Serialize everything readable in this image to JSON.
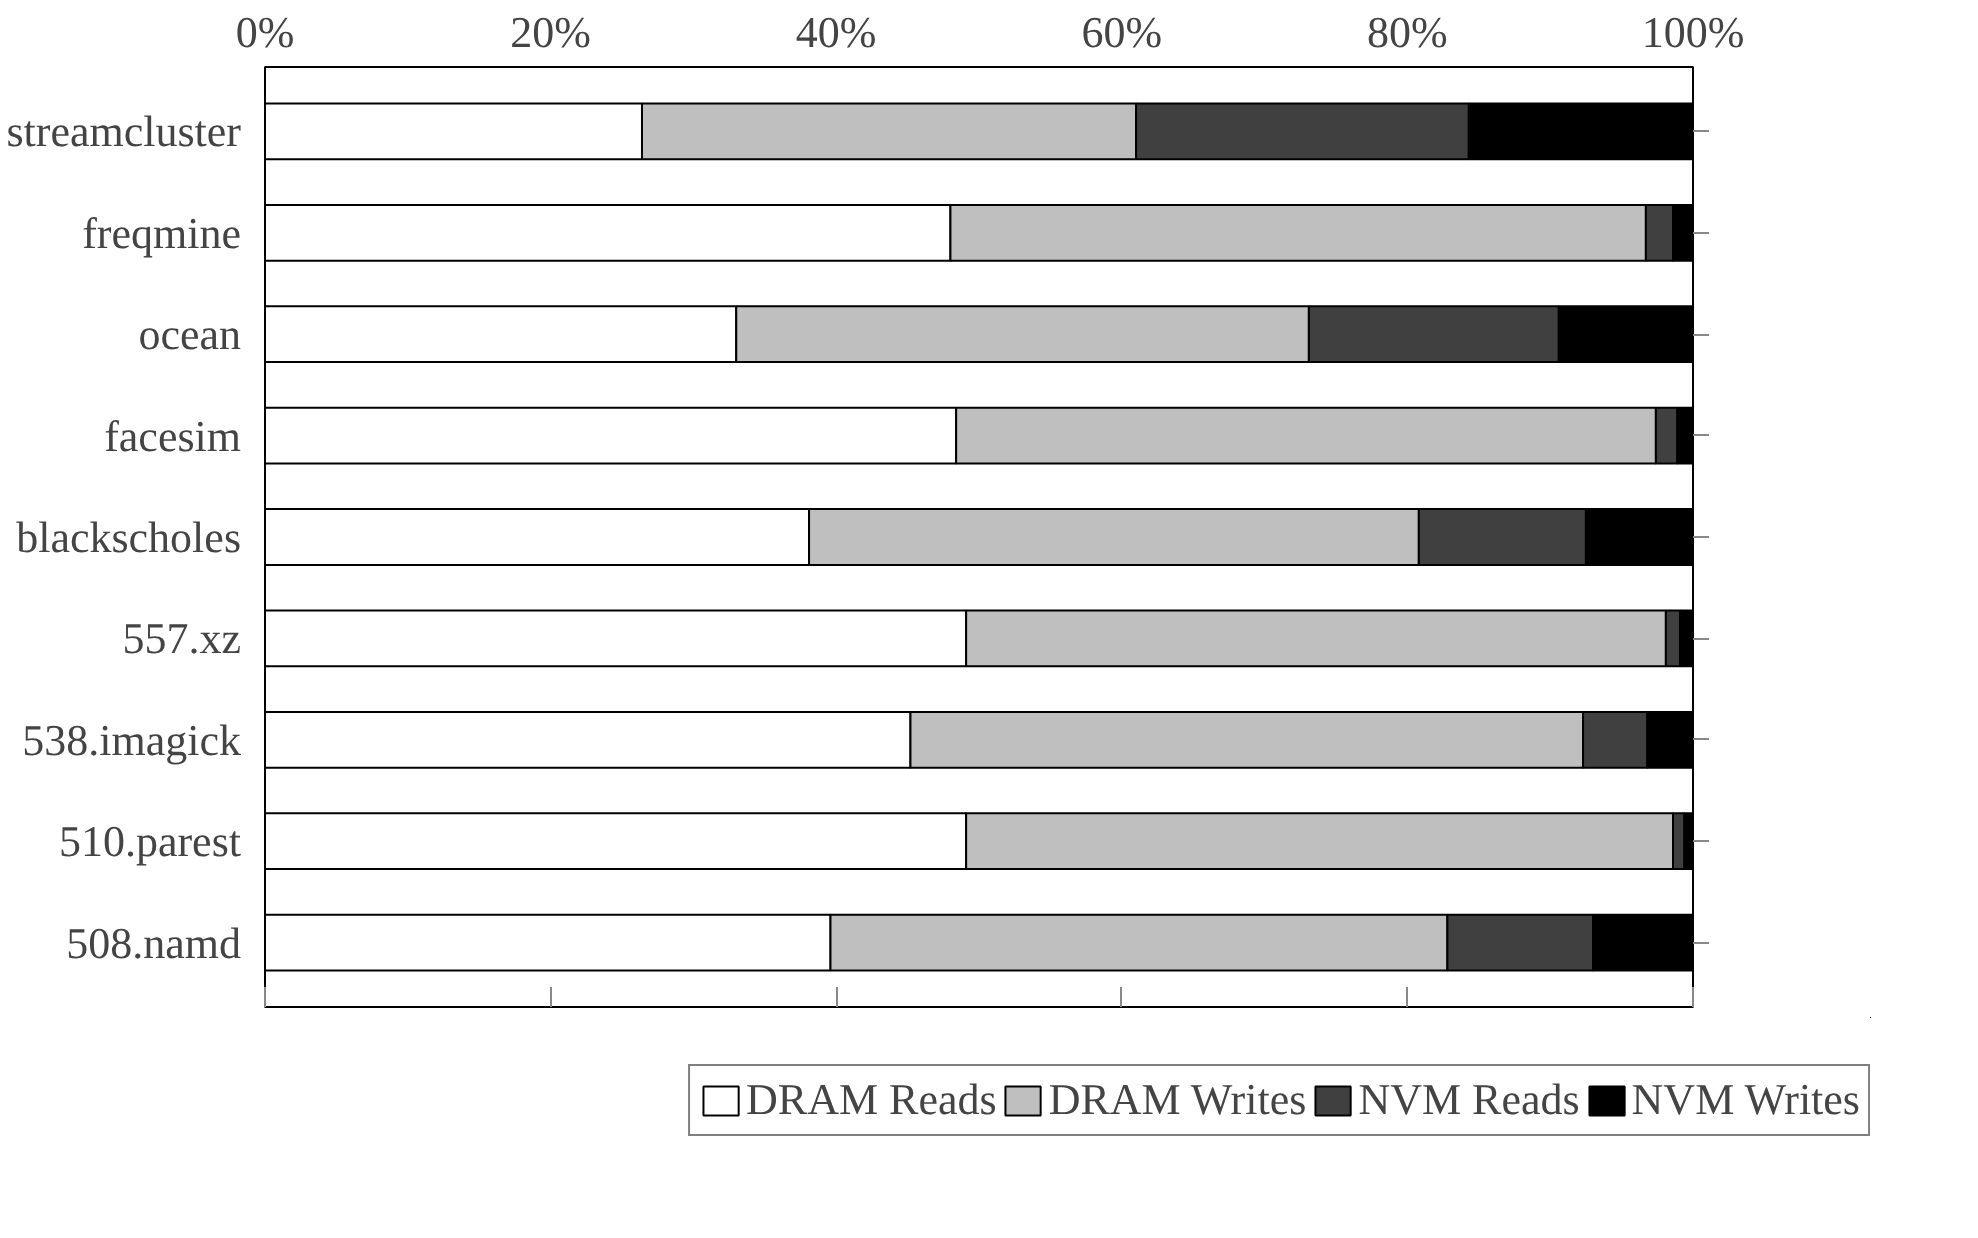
{
  "chart_data": {
    "type": "bar",
    "orientation": "horizontal",
    "stacked": true,
    "categories": [
      "streamcluster",
      "freqmine",
      "ocean",
      "facesim",
      "blackscholes",
      "557.xz",
      "538.imagick",
      "510.parest",
      "508.namd"
    ],
    "series": [
      {
        "name": "DRAM Reads",
        "color": "#ffffff",
        "values": [
          26.4,
          48.0,
          33.0,
          48.4,
          38.1,
          49.1,
          45.2,
          49.1,
          39.6
        ]
      },
      {
        "name": "DRAM Writes",
        "color": "#bfbfbf",
        "values": [
          34.6,
          48.7,
          40.1,
          49.0,
          42.7,
          49.0,
          47.1,
          49.5,
          43.2
        ]
      },
      {
        "name": "NVM Reads",
        "color": "#404040",
        "values": [
          23.3,
          1.9,
          17.5,
          1.5,
          11.7,
          1.0,
          4.5,
          0.8,
          10.2
        ]
      },
      {
        "name": "NVM Writes",
        "color": "#000000",
        "values": [
          15.7,
          1.4,
          9.4,
          1.1,
          7.5,
          0.9,
          3.2,
          0.6,
          7.0
        ]
      }
    ],
    "xlim": [
      0,
      100
    ],
    "xticks": [
      {
        "value": 0,
        "label": "0%"
      },
      {
        "value": 20,
        "label": "20%"
      },
      {
        "value": 40,
        "label": "40%"
      },
      {
        "value": 60,
        "label": "60%"
      },
      {
        "value": 80,
        "label": "80%"
      },
      {
        "value": 100,
        "label": "100%"
      }
    ],
    "grid": false,
    "legend": "bottom"
  }
}
